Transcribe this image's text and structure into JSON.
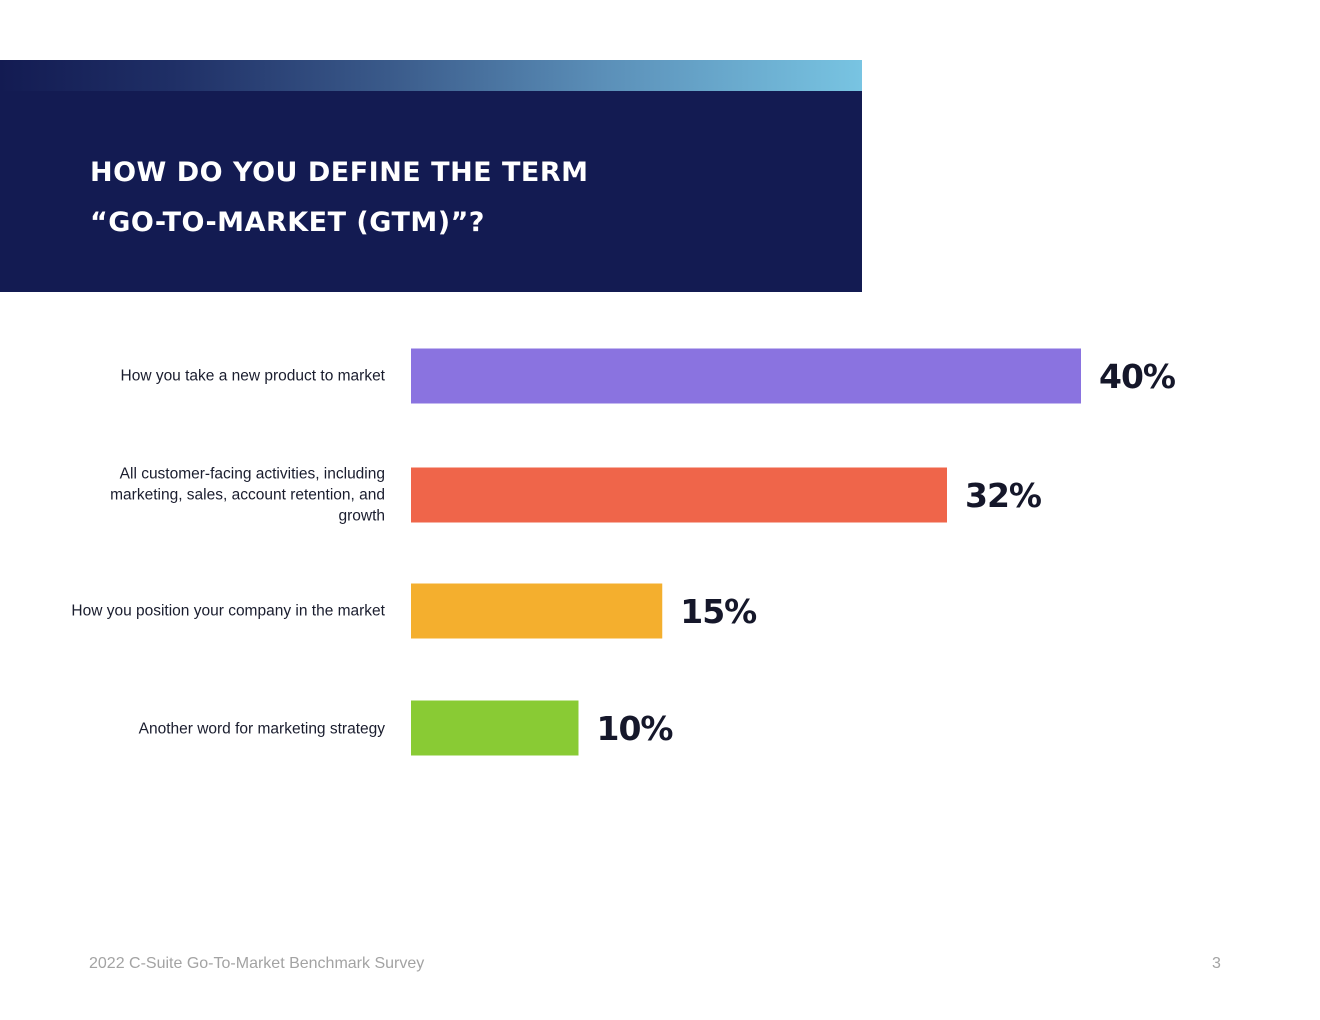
{
  "header": {
    "title_line1": "How do you define the term",
    "title_line2": "“Go-To-Market (GTM)”?"
  },
  "chart_data": {
    "type": "bar",
    "orientation": "horizontal",
    "title": "How do you define the term “Go-To-Market (GTM)”?",
    "categories": [
      "How you take a new product to market",
      "All customer-facing activities, including marketing, sales, account retention, and growth",
      "How you position your company in the market",
      "Another word for marketing strategy"
    ],
    "values": [
      40,
      32,
      15,
      10
    ],
    "value_labels": [
      "40%",
      "32%",
      "15%",
      "10%"
    ],
    "colors": [
      "#8a73e0",
      "#ef654a",
      "#f4af2e",
      "#89cb34"
    ],
    "xlim": [
      0,
      100
    ],
    "xlabel": "",
    "ylabel": "",
    "grid": false
  },
  "footer": {
    "report_title": "2022 C-Suite Go-To-Market Benchmark Survey",
    "page_number": "3"
  }
}
